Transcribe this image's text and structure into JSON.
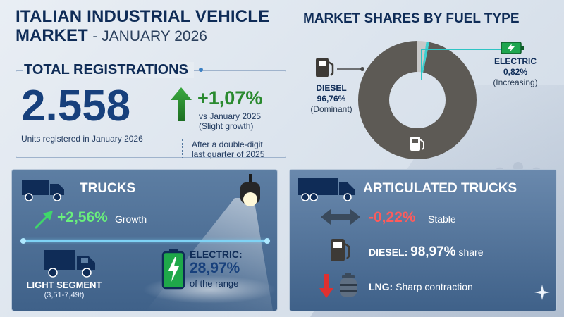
{
  "title": {
    "line1": "ITALIAN INDUSTRIAL VEHICLE",
    "line2": "MARKET",
    "date": "- JANUARY 2026"
  },
  "total_registrations": {
    "heading": "TOTAL REGISTRATIONS",
    "value": "2.558",
    "units": "Units registered in January 2026",
    "growth": "+1,07%",
    "growth_vs": "vs January 2025",
    "growth_note": "(Slight growth)",
    "note_line1": "After a double-digit",
    "note_line2": "last quarter of 2025"
  },
  "fuel_type": {
    "heading": "MARKET SHARES BY FUEL TYPE",
    "diesel": {
      "label": "DIESEL",
      "value": "96,76%",
      "note": "(Dominant)",
      "share": 96.76,
      "color": "#5d5a55"
    },
    "electric": {
      "label": "ELECTRIC",
      "value": "0,82%",
      "note": "(Increasing)",
      "share": 0.82,
      "color": "#3fd0d0"
    },
    "other_color": "#c8c8c8",
    "icons": [
      "fuel-pump-icon",
      "battery-icon"
    ]
  },
  "trucks": {
    "heading": "TRUCKS",
    "growth": "+2,56%",
    "growth_label": "Growth",
    "light_segment": "LIGHT SEGMENT",
    "light_range": "(3,51-7,49t)",
    "electric_label": "ELECTRIC:",
    "electric_value": "28,97%",
    "electric_sub": "of the range"
  },
  "articulated": {
    "heading": "ARTICULATED TRUCKS",
    "change": "-0,22%",
    "change_label": "Stable",
    "diesel_label": "DIESEL:",
    "diesel_value": "98,97%",
    "diesel_suffix": "share",
    "lng_label": "LNG:",
    "lng_text": "Sharp contraction"
  },
  "colors": {
    "navy": "#0f2c57",
    "green": "#2a8a2f",
    "red": "#ff5b5b",
    "panel": "#4d6f96"
  }
}
